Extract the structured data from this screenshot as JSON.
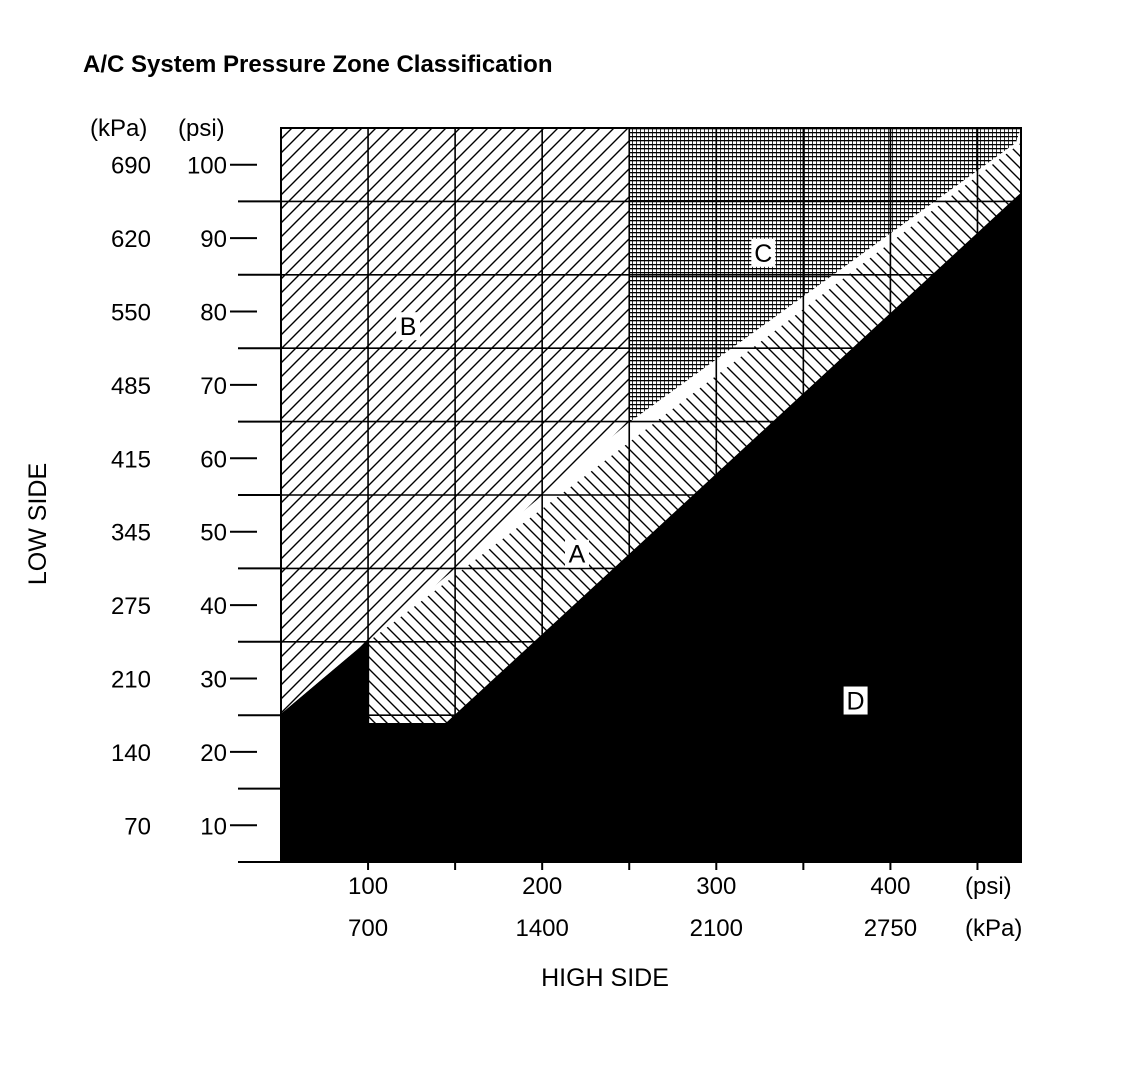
{
  "chart_data": {
    "type": "area",
    "title": "A/C System Pressure Zone Classification",
    "xlabel": "HIGH SIDE",
    "ylabel": "LOW SIDE",
    "x_units": [
      "(psi)",
      "(kPa)"
    ],
    "y_units": [
      "(kPa)",
      "(psi)"
    ],
    "xlim": [
      50,
      475
    ],
    "ylim": [
      5,
      105
    ],
    "grid": true,
    "x_ticks": [
      {
        "psi": "100",
        "kpa": "700"
      },
      {
        "psi": "200",
        "kpa": "1400"
      },
      {
        "psi": "300",
        "kpa": "2100"
      },
      {
        "psi": "400",
        "kpa": "2750"
      }
    ],
    "y_ticks": [
      {
        "kpa": "690",
        "psi": "100"
      },
      {
        "kpa": "620",
        "psi": "90"
      },
      {
        "kpa": "550",
        "psi": "80"
      },
      {
        "kpa": "485",
        "psi": "70"
      },
      {
        "kpa": "415",
        "psi": "60"
      },
      {
        "kpa": "345",
        "psi": "50"
      },
      {
        "kpa": "275",
        "psi": "40"
      },
      {
        "kpa": "210",
        "psi": "30"
      },
      {
        "kpa": "140",
        "psi": "20"
      },
      {
        "kpa": "70",
        "psi": "10"
      }
    ],
    "zones": [
      {
        "label": "A",
        "polygon": [
          [
            100,
            35
          ],
          [
            100,
            23.8
          ],
          [
            145,
            23.8
          ],
          [
            475,
            91.8
          ],
          [
            475,
            103
          ]
        ]
      },
      {
        "label": "B",
        "polygon": [
          [
            50,
            25
          ],
          [
            100,
            35
          ],
          [
            250,
            64.9
          ],
          [
            250,
            105
          ],
          [
            50,
            105
          ]
        ]
      },
      {
        "label": "C",
        "polygon": [
          [
            250,
            64.9
          ],
          [
            472,
            103
          ],
          [
            475,
            105
          ],
          [
            250,
            105
          ]
        ]
      },
      {
        "label": "D",
        "polygon": [
          [
            50,
            5
          ],
          [
            475,
            5
          ],
          [
            475,
            96
          ],
          [
            145,
            23.8
          ],
          [
            100,
            23.8
          ],
          [
            100,
            35
          ],
          [
            50,
            25
          ]
        ]
      }
    ],
    "zone_labels": [
      {
        "label": "A",
        "x": 220,
        "y": 47
      },
      {
        "label": "B",
        "x": 123,
        "y": 78
      },
      {
        "label": "C",
        "x": 327,
        "y": 88
      },
      {
        "label": "D",
        "x": 380,
        "y": 27
      }
    ]
  }
}
